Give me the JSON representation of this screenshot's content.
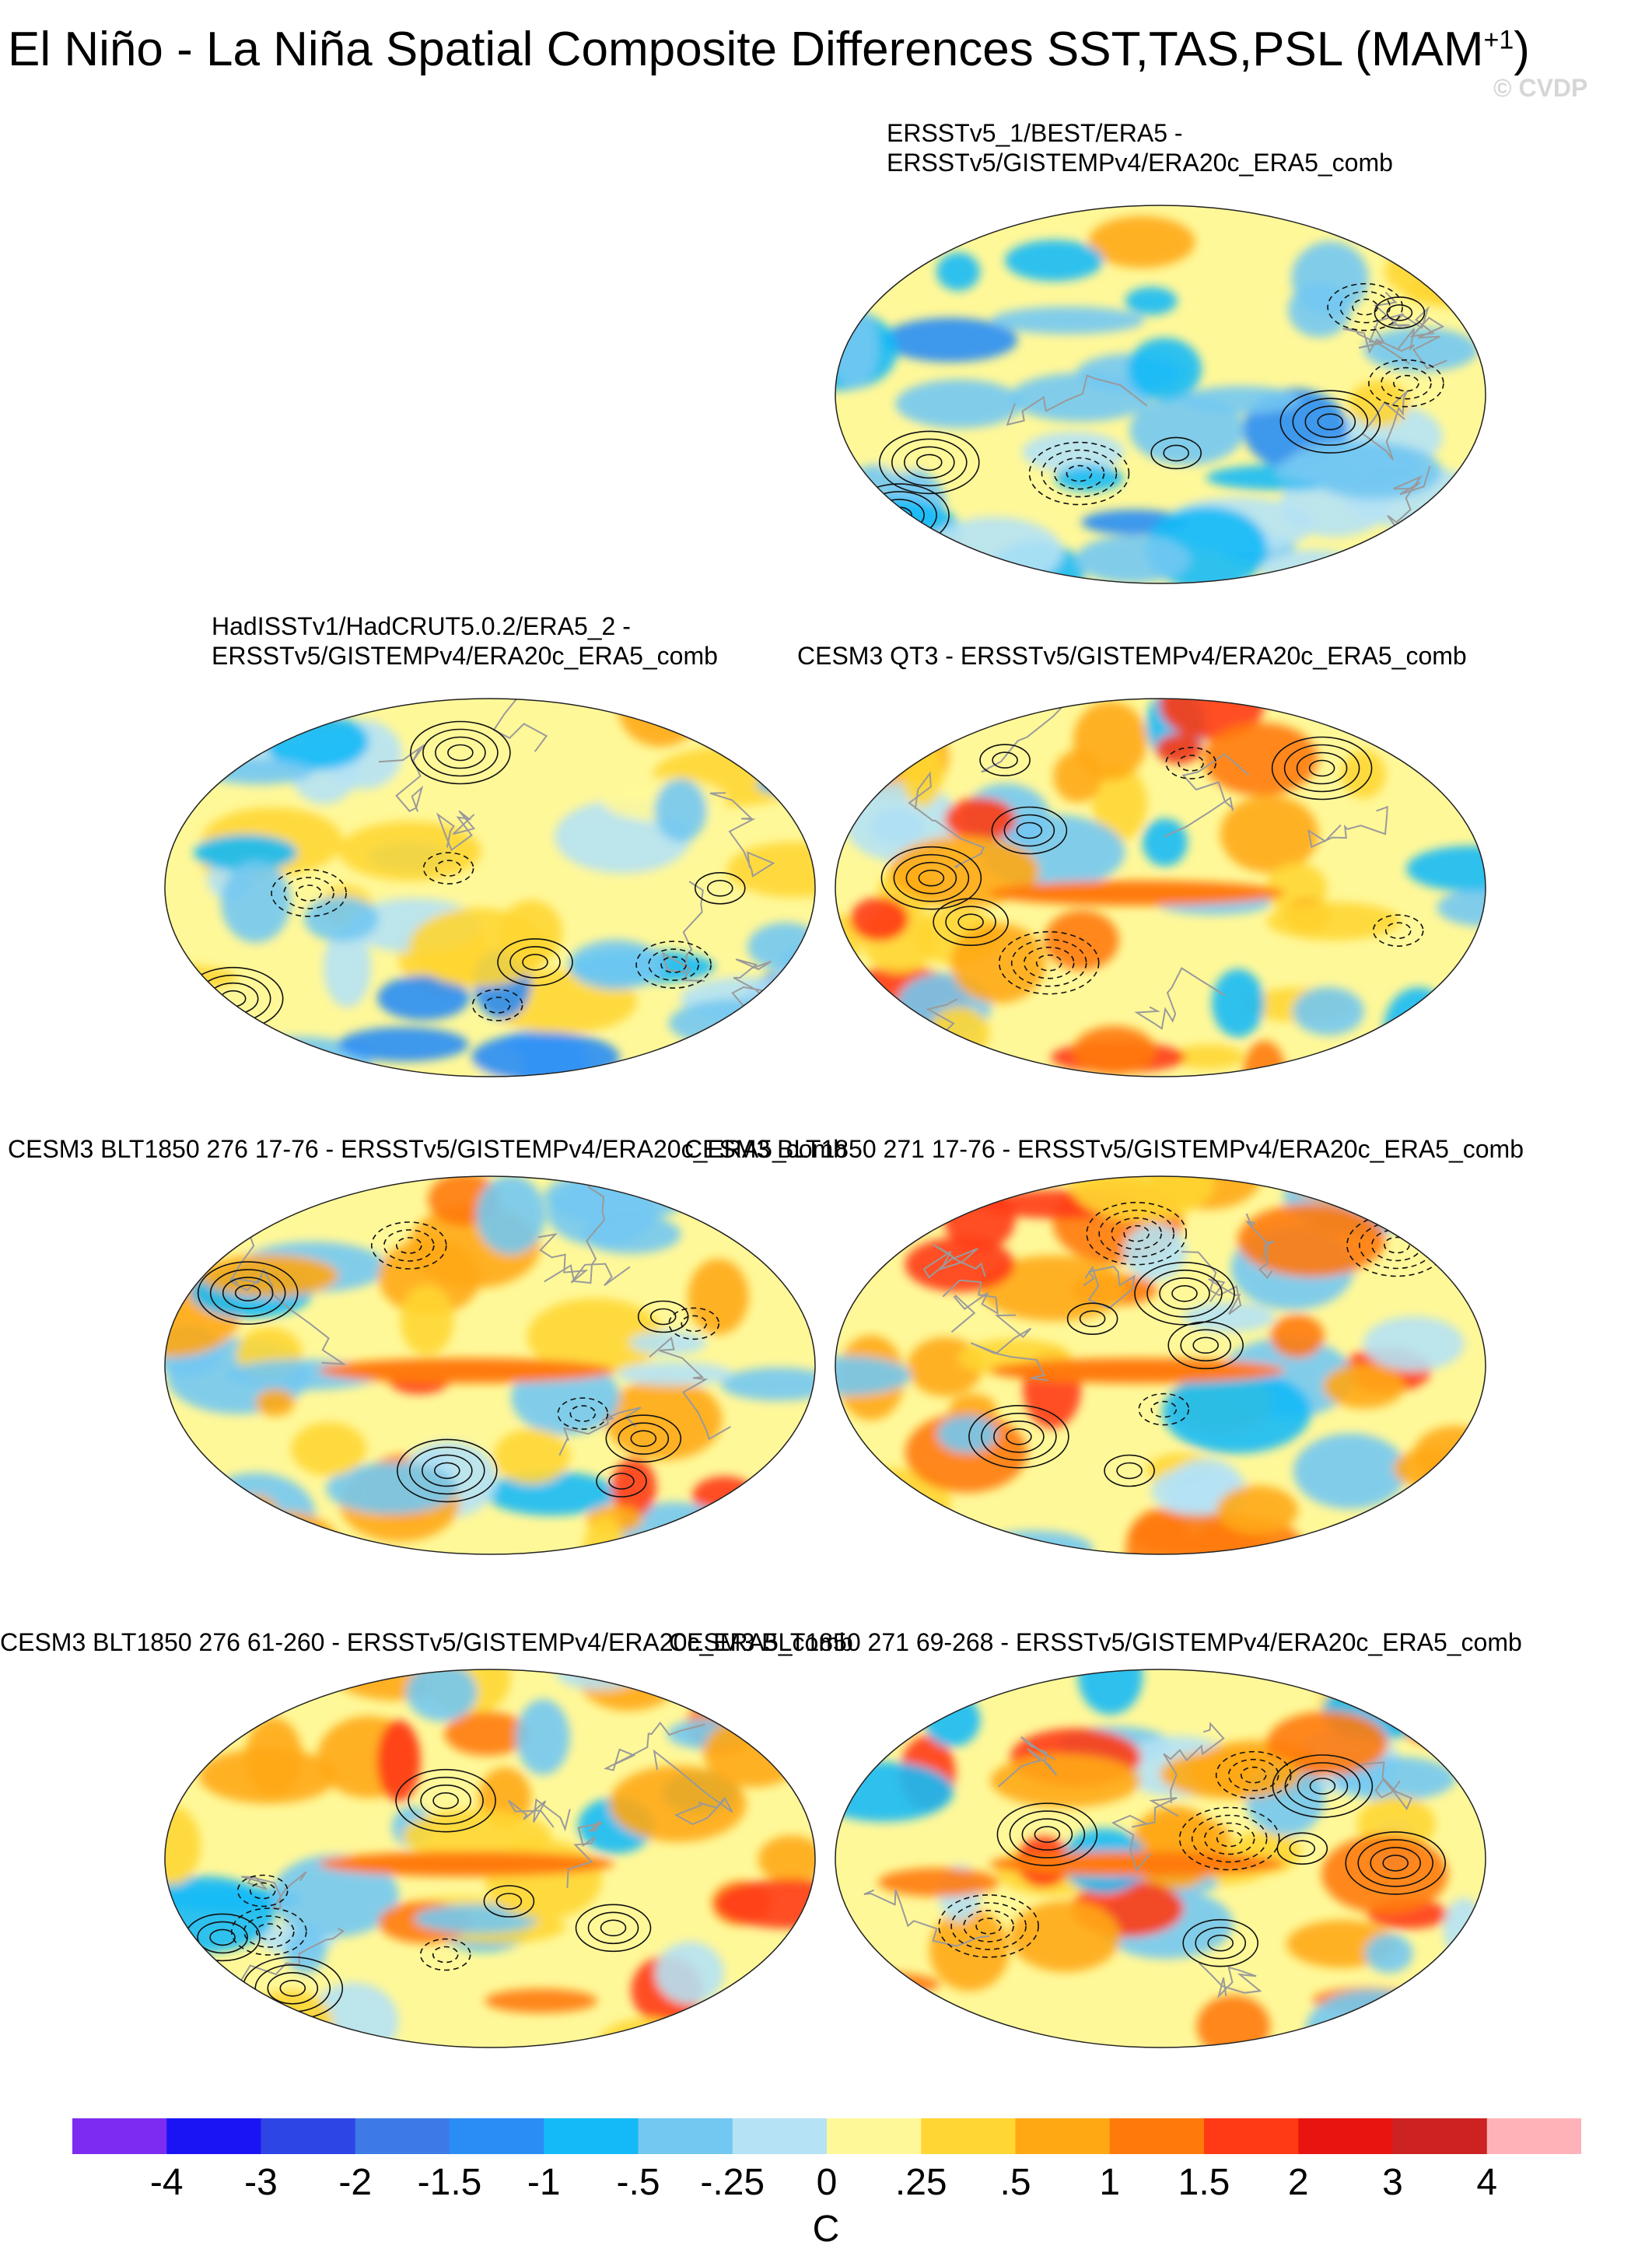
{
  "title": {
    "text": "El Niño - La Niña Spatial Composite Differences SST,TAS,PSL (MAM",
    "superscript": "+1",
    "close": ")"
  },
  "watermark": "© CVDP",
  "panels": [
    {
      "id": "obs-ersst",
      "title_line1": "ERSSTv5_1/BEST/ERA5 -",
      "title_line2": "ERSSTv5/GISTEMPv4/ERA20c_ERA5_comb"
    },
    {
      "id": "obs-hadisst",
      "title_line1": "HadISSTv1/HadCRUT5.0.2/ERA5_2 -",
      "title_line2": "ERSSTv5/GISTEMPv4/ERA20c_ERA5_comb"
    },
    {
      "id": "cesm3-qt3",
      "title_line1": "",
      "title_line2": "CESM3 QT3 - ERSSTv5/GISTEMPv4/ERA20c_ERA5_comb"
    },
    {
      "id": "cesm3-276-17-76",
      "title_line1": "",
      "title_line2": "CESM3 BLT1850 276 17-76 - ERSSTv5/GISTEMPv4/ERA20c_ERA5_comb"
    },
    {
      "id": "cesm3-271-17-76",
      "title_line1": "",
      "title_line2": "CESM3 BLT1850 271 17-76 - ERSSTv5/GISTEMPv4/ERA20c_ERA5_comb"
    },
    {
      "id": "cesm3-276-61-260",
      "title_line1": "",
      "title_line2": "CESM3 BLT1850 276 61-260 - ERSSTv5/GISTEMPv4/ERA20c_ERA5_comb"
    },
    {
      "id": "cesm3-271-69-268",
      "title_line1": "",
      "title_line2": "CESM3 BLT1850 271 69-268 - ERSSTv5/GISTEMPv4/ERA20c_ERA5_comb"
    }
  ],
  "colorbar": {
    "colors": [
      "#7d2bf0",
      "#1a14f5",
      "#2e45e6",
      "#3d7ae8",
      "#2a8df5",
      "#14baf7",
      "#73c8f2",
      "#b5e2f5",
      "#fff899",
      "#ffd633",
      "#ffa814",
      "#ff7a0a",
      "#ff3a14",
      "#e8140f",
      "#cc2222",
      "#ffb3b8"
    ],
    "ticks": [
      "-4",
      "-3",
      "-2",
      "-1.5",
      "-1",
      "-.5",
      "-.25",
      "0",
      ".25",
      ".5",
      "1",
      "1.5",
      "2",
      "3",
      "4"
    ],
    "units": "C"
  }
}
